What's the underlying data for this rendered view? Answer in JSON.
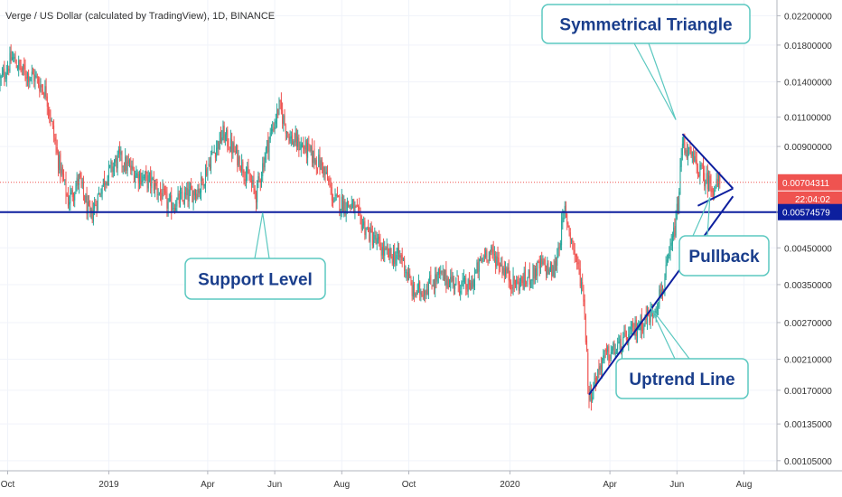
{
  "chart_data": {
    "type": "candlestick",
    "title": "Verge / US Dollar (calculated by TradingView), 1D, BINANCE",
    "y_scale": "log",
    "ylim": [
      0.00098,
      0.0245
    ],
    "x_range": [
      "2018-09-24",
      "2020-08-31"
    ],
    "grid": true,
    "price_ticks": [
      "0.02200000",
      "0.01800000",
      "0.01400000",
      "0.01100000",
      "0.00900000",
      "0.00450000",
      "0.00350000",
      "0.00270000",
      "0.00210000",
      "0.00170000",
      "0.00135000",
      "0.00105000"
    ],
    "time_ticks": [
      {
        "date": "2018-10-01",
        "label": "Oct"
      },
      {
        "date": "2019-01-01",
        "label": "2019"
      },
      {
        "date": "2019-04-01",
        "label": "Apr"
      },
      {
        "date": "2019-06-01",
        "label": "Jun"
      },
      {
        "date": "2019-08-01",
        "label": "Aug"
      },
      {
        "date": "2019-10-01",
        "label": "Oct"
      },
      {
        "date": "2020-01-01",
        "label": "2020"
      },
      {
        "date": "2020-04-01",
        "label": "Apr"
      },
      {
        "date": "2020-06-01",
        "label": "Jun"
      },
      {
        "date": "2020-08-01",
        "label": "Aug"
      }
    ],
    "price_path": [
      [
        "2018-09-24",
        0.014
      ],
      [
        "2018-10-05",
        0.0165
      ],
      [
        "2018-10-15",
        0.015
      ],
      [
        "2018-10-25",
        0.0145
      ],
      [
        "2018-11-05",
        0.013
      ],
      [
        "2018-11-15",
        0.0085
      ],
      [
        "2018-11-25",
        0.0062
      ],
      [
        "2018-12-05",
        0.0072
      ],
      [
        "2018-12-15",
        0.0055
      ],
      [
        "2018-12-28",
        0.0072
      ],
      [
        "2019-01-10",
        0.0083
      ],
      [
        "2019-01-25",
        0.0075
      ],
      [
        "2019-02-10",
        0.007
      ],
      [
        "2019-02-25",
        0.006
      ],
      [
        "2019-03-10",
        0.0063
      ],
      [
        "2019-03-25",
        0.0068
      ],
      [
        "2019-04-05",
        0.0085
      ],
      [
        "2019-04-15",
        0.0098
      ],
      [
        "2019-04-30",
        0.0082
      ],
      [
        "2019-05-15",
        0.0065
      ],
      [
        "2019-05-25",
        0.009
      ],
      [
        "2019-06-05",
        0.0118
      ],
      [
        "2019-06-15",
        0.0095
      ],
      [
        "2019-06-30",
        0.0088
      ],
      [
        "2019-07-15",
        0.0078
      ],
      [
        "2019-07-25",
        0.0062
      ],
      [
        "2019-08-10",
        0.006
      ],
      [
        "2019-08-25",
        0.005
      ],
      [
        "2019-09-10",
        0.0043
      ],
      [
        "2019-09-25",
        0.0042
      ],
      [
        "2019-10-05",
        0.0033
      ],
      [
        "2019-10-15",
        0.0034
      ],
      [
        "2019-10-28",
        0.0037
      ],
      [
        "2019-11-10",
        0.0036
      ],
      [
        "2019-11-25",
        0.0034
      ],
      [
        "2019-12-10",
        0.0044
      ],
      [
        "2019-12-20",
        0.0042
      ],
      [
        "2020-01-05",
        0.0035
      ],
      [
        "2020-01-15",
        0.0036
      ],
      [
        "2020-01-30",
        0.004
      ],
      [
        "2020-02-10",
        0.0038
      ],
      [
        "2020-02-20",
        0.0058
      ],
      [
        "2020-03-01",
        0.0042
      ],
      [
        "2020-03-08",
        0.0033
      ],
      [
        "2020-03-13",
        0.0016
      ],
      [
        "2020-03-25",
        0.0021
      ],
      [
        "2020-04-10",
        0.0023
      ],
      [
        "2020-04-25",
        0.0026
      ],
      [
        "2020-05-10",
        0.0029
      ],
      [
        "2020-05-20",
        0.0035
      ],
      [
        "2020-05-28",
        0.0047
      ],
      [
        "2020-06-02",
        0.006
      ],
      [
        "2020-06-06",
        0.0093
      ],
      [
        "2020-06-12",
        0.0085
      ],
      [
        "2020-06-20",
        0.0078
      ],
      [
        "2020-06-27",
        0.0072
      ],
      [
        "2020-07-05",
        0.0068
      ],
      [
        "2020-07-10",
        0.007
      ]
    ],
    "last_price": {
      "value": 0.00704311,
      "label": "0.00704311",
      "color": "#ef5350"
    },
    "countdown": {
      "label": "22:04:02",
      "color": "#ef5350"
    },
    "support_level": {
      "value": 0.00574579,
      "label": "0.00574579",
      "color": "#0d1f9e"
    },
    "triangle": {
      "upper": [
        [
          "2020-06-06",
          0.0098
        ],
        [
          "2020-07-22",
          0.00675
        ]
      ],
      "lower": [
        [
          "2020-06-20",
          0.006
        ],
        [
          "2020-07-22",
          0.00675
        ]
      ]
    },
    "uptrend_line": [
      [
        "2020-03-13",
        0.00165
      ],
      [
        "2020-07-22",
        0.0064
      ]
    ],
    "annotations": [
      {
        "text": "Symmetrical Triangle",
        "target": [
          "2020-05-31",
          0.0108
        ]
      },
      {
        "text": "Support Level",
        "target": [
          "2019-05-21",
          0.00572
        ]
      },
      {
        "text": "Pullback",
        "target": [
          "2020-07-01",
          0.00635
        ]
      },
      {
        "text": "Uptrend Line",
        "target": [
          "2020-05-08",
          0.003
        ]
      }
    ],
    "colors": {
      "up": "#26a69a",
      "down": "#ef5350",
      "line": "#0d1f9e",
      "callout_border": "#5bc8c0",
      "callout_text": "#1a3e8c"
    }
  }
}
